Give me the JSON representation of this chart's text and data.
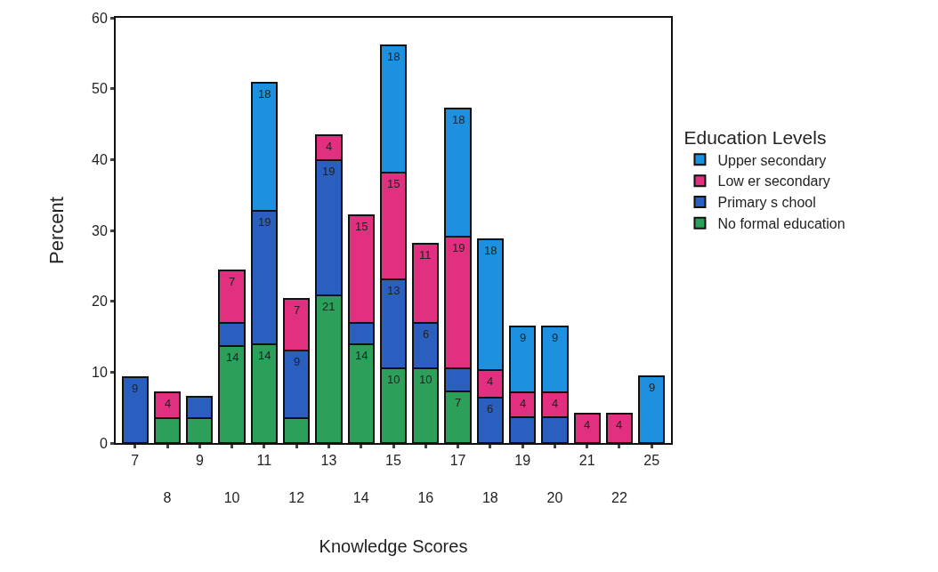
{
  "chart_data": {
    "type": "bar",
    "stacked": true,
    "xlabel": "Knowledge Scores",
    "ylabel": "Percent",
    "legend_title": "Education Levels",
    "legend": "right",
    "categories": [
      "7",
      "8",
      "9",
      "10",
      "11",
      "12",
      "13",
      "14",
      "15",
      "16",
      "17",
      "18",
      "19",
      "20",
      "21",
      "22",
      "25"
    ],
    "ylim": [
      0,
      60
    ],
    "yticks": [
      0,
      10,
      20,
      30,
      40,
      50,
      60
    ],
    "series": [
      {
        "name": "No formal education",
        "color": "#2ca05a",
        "values": [
          null,
          3.5,
          3.5,
          13.7,
          13.9,
          3.5,
          20.8,
          13.9,
          10.5,
          10.5,
          7.3,
          null,
          null,
          null,
          null,
          null,
          null
        ],
        "value_labels": [
          null,
          null,
          null,
          "14",
          "14",
          null,
          "21",
          "14",
          "10",
          "10",
          "7",
          null,
          null,
          null,
          null,
          null,
          null
        ]
      },
      {
        "name": "Primary s chool",
        "color": "#2b5fbf",
        "values": [
          9.3,
          null,
          3,
          3.3,
          18.8,
          9.5,
          19.1,
          3.1,
          12.6,
          6.5,
          3.2,
          6.4,
          3.6,
          3.6,
          null,
          null,
          null
        ],
        "value_labels": [
          "9",
          null,
          null,
          null,
          "19",
          "9",
          "19",
          null,
          "13",
          "6",
          null,
          "6",
          null,
          null,
          null,
          null,
          null
        ]
      },
      {
        "name": "Low er secondary",
        "color": "#e0307f",
        "values": [
          null,
          3.6,
          null,
          7.4,
          null,
          7.3,
          3.5,
          15.1,
          15.0,
          11.1,
          18.6,
          3.9,
          3.5,
          3.5,
          4.2,
          4.2,
          null
        ],
        "value_labels": [
          null,
          "4",
          null,
          "7",
          null,
          "7",
          "4",
          "15",
          "15",
          "11",
          "19",
          "4",
          "4",
          "4",
          "4",
          "4",
          null
        ]
      },
      {
        "name": "Upper secondary",
        "color": "#1e90e0",
        "values": [
          null,
          null,
          null,
          null,
          18.2,
          null,
          null,
          null,
          18.0,
          null,
          18.1,
          18.4,
          9.4,
          9.4,
          null,
          null,
          9.4
        ],
        "value_labels": [
          null,
          null,
          null,
          null,
          "18",
          null,
          null,
          null,
          "18",
          null,
          "18",
          "18",
          "9",
          "9",
          null,
          null,
          "9"
        ]
      }
    ]
  }
}
